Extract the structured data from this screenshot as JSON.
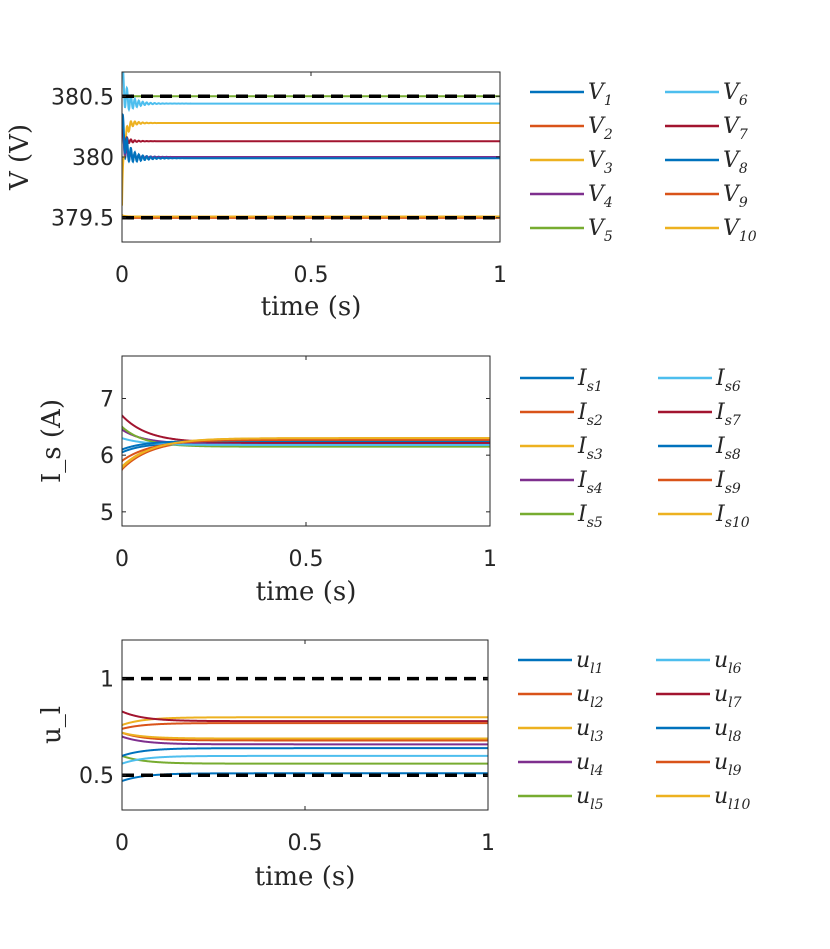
{
  "chart_data": [
    {
      "type": "line",
      "ylabel": "V (V)",
      "xlabel": "time (s)",
      "xlim": [
        0,
        1
      ],
      "ylim": [
        379.3,
        380.7
      ],
      "xticks": [
        "0",
        "0.5",
        "1"
      ],
      "yticks": [
        "380.5",
        "380",
        "379.5"
      ],
      "ytick_values": [
        380.5,
        380.0,
        379.5
      ],
      "bounds": [
        380.5,
        379.5
      ],
      "legend_main": "V",
      "legend_subs": [
        "1",
        "2",
        "3",
        "4",
        "5",
        "6",
        "7",
        "8",
        "9",
        "10"
      ],
      "series": [
        {
          "name": "V1",
          "start": 380.2,
          "final": 380.0,
          "tau": 0.008,
          "osc": 0.12
        },
        {
          "name": "V2",
          "start": 379.5,
          "final": 379.5,
          "tau": 0.008,
          "osc": 0.0
        },
        {
          "name": "V3",
          "start": 379.6,
          "final": 380.28,
          "tau": 0.006,
          "osc": 0.1
        },
        {
          "name": "V4",
          "start": 380.2,
          "final": 380.0,
          "tau": 0.008,
          "osc": 0.08
        },
        {
          "name": "V5",
          "start": 380.5,
          "final": 380.5,
          "tau": 0.008,
          "osc": 0.0
        },
        {
          "name": "V6",
          "start": 380.65,
          "final": 380.44,
          "tau": 0.008,
          "osc": 0.15
        },
        {
          "name": "V7",
          "start": 380.2,
          "final": 380.13,
          "tau": 0.006,
          "osc": 0.05
        },
        {
          "name": "V8",
          "start": 380.3,
          "final": 379.99,
          "tau": 0.01,
          "osc": 0.12
        },
        {
          "name": "V9",
          "start": 379.5,
          "final": 379.5,
          "tau": 0.008,
          "osc": 0.0
        },
        {
          "name": "V10",
          "start": 379.52,
          "final": 379.51,
          "tau": 0.008,
          "osc": 0.0
        }
      ]
    },
    {
      "type": "line",
      "ylabel": "I_s (A)",
      "xlabel": "time (s)",
      "xlim": [
        0,
        1
      ],
      "ylim": [
        4.75,
        7.75
      ],
      "xticks": [
        "0",
        "0.5",
        "1"
      ],
      "yticks": [
        "7",
        "6",
        "5"
      ],
      "ytick_values": [
        7,
        6,
        5
      ],
      "bounds": [],
      "legend_main": "I",
      "legend_subs": [
        "s1",
        "s2",
        "s3",
        "s4",
        "s5",
        "s6",
        "s7",
        "s8",
        "s9",
        "s10"
      ],
      "series": [
        {
          "name": "Is1",
          "start": 6.05,
          "final": 6.22,
          "tau": 0.06,
          "osc": 0.0
        },
        {
          "name": "Is2",
          "start": 5.75,
          "final": 6.28,
          "tau": 0.08,
          "osc": 0.0
        },
        {
          "name": "Is3",
          "start": 5.8,
          "final": 6.3,
          "tau": 0.08,
          "osc": 0.0
        },
        {
          "name": "Is4",
          "start": 6.45,
          "final": 6.2,
          "tau": 0.06,
          "osc": 0.0
        },
        {
          "name": "Is5",
          "start": 6.5,
          "final": 6.15,
          "tau": 0.06,
          "osc": 0.0
        },
        {
          "name": "Is6",
          "start": 6.3,
          "final": 6.18,
          "tau": 0.06,
          "osc": 0.0
        },
        {
          "name": "Is7",
          "start": 6.7,
          "final": 6.22,
          "tau": 0.07,
          "osc": 0.0
        },
        {
          "name": "Is8",
          "start": 6.1,
          "final": 6.25,
          "tau": 0.06,
          "osc": 0.0
        },
        {
          "name": "Is9",
          "start": 5.9,
          "final": 6.27,
          "tau": 0.08,
          "osc": 0.0
        },
        {
          "name": "Is10",
          "start": 5.78,
          "final": 6.3,
          "tau": 0.08,
          "osc": 0.0
        }
      ]
    },
    {
      "type": "line",
      "ylabel": "u_l",
      "xlabel": "time (s)",
      "xlim": [
        0,
        1
      ],
      "ylim": [
        0.32,
        1.2
      ],
      "xticks": [
        "0",
        "0.5",
        "1"
      ],
      "yticks": [
        "1",
        "0.5"
      ],
      "ytick_values": [
        1,
        0.5
      ],
      "bounds": [
        1.0,
        0.5
      ],
      "legend_main": "u",
      "legend_subs": [
        "l1",
        "l2",
        "l3",
        "l4",
        "l5",
        "l6",
        "l7",
        "l8",
        "l9",
        "l10"
      ],
      "series": [
        {
          "name": "ul1",
          "start": 0.47,
          "final": 0.51,
          "tau": 0.06,
          "osc": 0.0
        },
        {
          "name": "ul2",
          "start": 0.74,
          "final": 0.77,
          "tau": 0.06,
          "osc": 0.0
        },
        {
          "name": "ul3",
          "start": 0.76,
          "final": 0.8,
          "tau": 0.06,
          "osc": 0.0
        },
        {
          "name": "ul4",
          "start": 0.7,
          "final": 0.66,
          "tau": 0.06,
          "osc": 0.0
        },
        {
          "name": "ul5",
          "start": 0.6,
          "final": 0.56,
          "tau": 0.06,
          "osc": 0.0
        },
        {
          "name": "ul6",
          "start": 0.56,
          "final": 0.6,
          "tau": 0.06,
          "osc": 0.0
        },
        {
          "name": "ul7",
          "start": 0.83,
          "final": 0.78,
          "tau": 0.06,
          "osc": 0.0
        },
        {
          "name": "ul8",
          "start": 0.6,
          "final": 0.64,
          "tau": 0.06,
          "osc": 0.0
        },
        {
          "name": "ul9",
          "start": 0.72,
          "final": 0.68,
          "tau": 0.06,
          "osc": 0.0
        },
        {
          "name": "ul10",
          "start": 0.72,
          "final": 0.69,
          "tau": 0.06,
          "osc": 0.0
        }
      ]
    }
  ],
  "colors": [
    "#0072BD",
    "#D95319",
    "#EDB120",
    "#7E2F8E",
    "#77AC30",
    "#4DBEEE",
    "#A2142F",
    "#0072BD",
    "#D95319",
    "#EDB120"
  ]
}
